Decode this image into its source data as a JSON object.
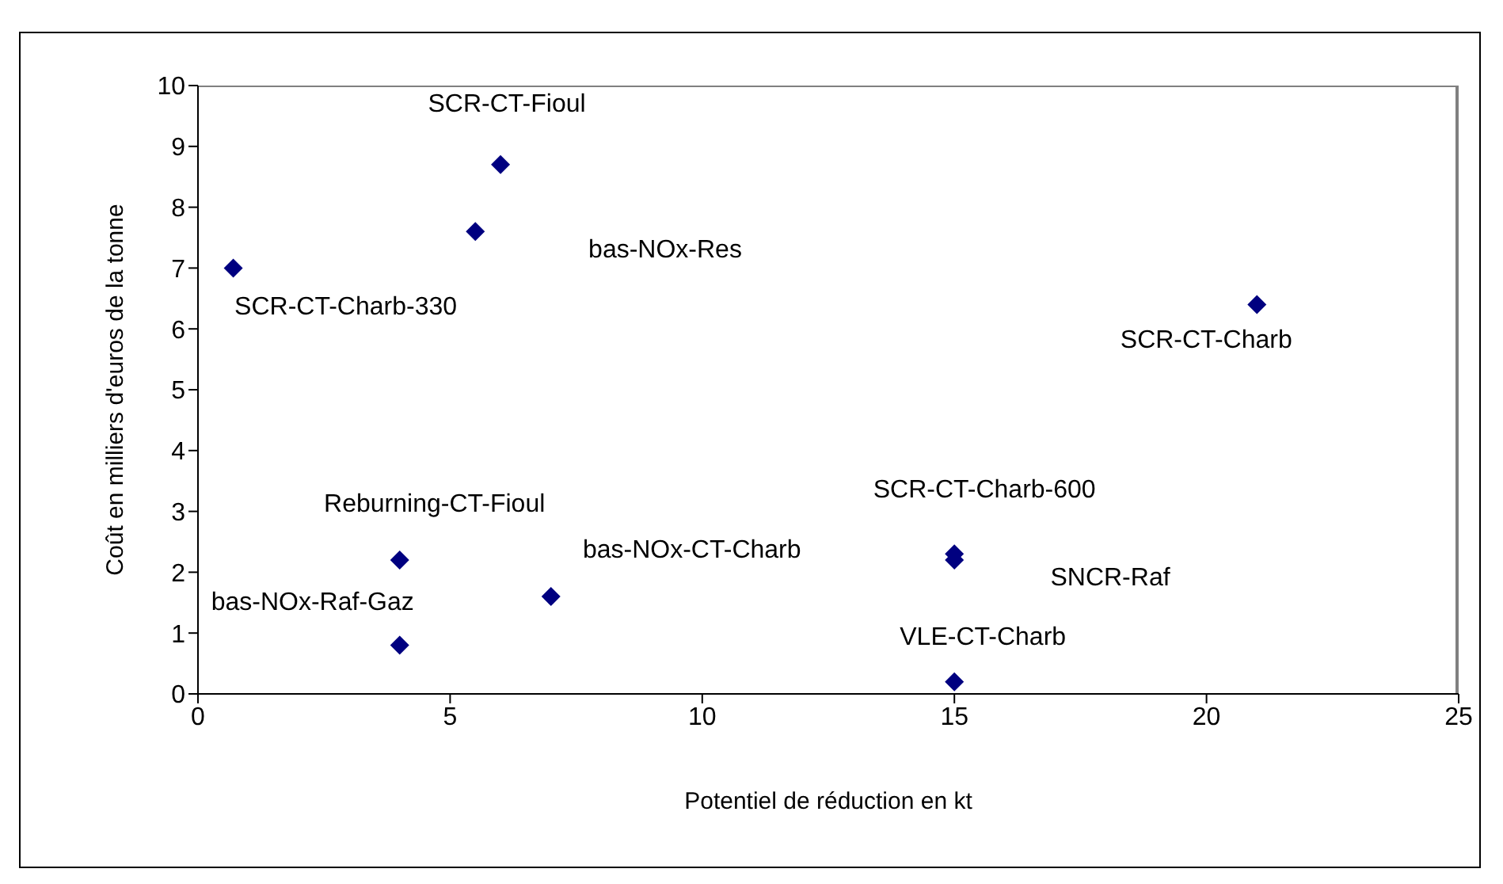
{
  "chart_data": {
    "type": "scatter",
    "xlabel": "Potentiel de réduction en kt",
    "ylabel": "Coût en milliers d'euros de la tonne",
    "x": [
      0.7,
      6,
      5.5,
      21,
      4,
      4,
      7,
      15,
      15,
      15
    ],
    "series": [
      {
        "color": "#000080",
        "values": [
          7.0,
          8.7,
          7.6,
          6.4,
          2.2,
          0.8,
          1.6,
          2.3,
          2.2,
          0.2
        ]
      }
    ],
    "xlim": [
      0,
      25
    ],
    "xticks": [
      0,
      5,
      10,
      15,
      20,
      25
    ],
    "ylim": [
      0,
      10
    ],
    "yticks": [
      0,
      1,
      2,
      3,
      4,
      5,
      6,
      7,
      8,
      9,
      10
    ],
    "grid": false,
    "legend": false,
    "marker": "diamond",
    "annotations": [
      {
        "text": "SCR-CT-Charb-330",
        "x": 0.7,
        "y": 7.0
      },
      {
        "text": "SCR-CT-Fioul",
        "x": 6,
        "y": 8.7
      },
      "bas-NOx-Res",
      {
        "text": "SCR-CT-Charb",
        "x": 21,
        "y": 6.4
      },
      {
        "text": "Reburning-CT-Fioul",
        "x": 4,
        "y": 2.2
      },
      {
        "text": "bas-NOx-Raf-Gaz",
        "x": 4,
        "y": 0.8
      },
      {
        "text": "bas-NOx-CT-Charb",
        "x": 7,
        "y": 1.6
      },
      {
        "text": "SCR-CT-Charb-600",
        "x": 15,
        "y": 2.3
      },
      "SNCR-Raf",
      {
        "text": "VLE-CT-Charb",
        "x": 15,
        "y": 0.2
      }
    ]
  }
}
